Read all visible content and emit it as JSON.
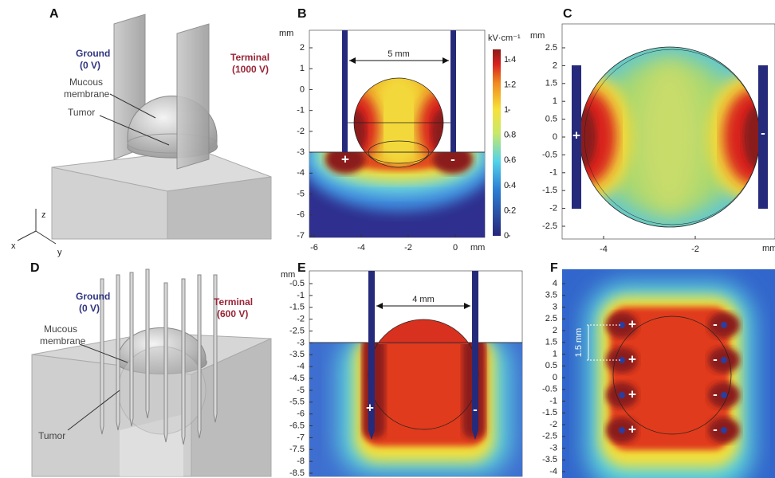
{
  "panel_a": {
    "letter": "A",
    "ground_label": "Ground",
    "ground_voltage": "(0 V)",
    "terminal_label": "Terminal",
    "terminal_voltage": "(1000 V)",
    "membrane_label": [
      "Mucous",
      "membrane"
    ],
    "tumor_label": "Tumor",
    "axes": [
      "z",
      "x",
      "y"
    ]
  },
  "panel_b": {
    "letter": "B",
    "y_unit": "mm",
    "x_unit": "mm",
    "yticks": [
      2,
      1,
      0,
      -1,
      -2,
      -3,
      -4,
      -5,
      -6,
      -7
    ],
    "xticks": [
      -6,
      -4,
      -2,
      0
    ],
    "gap_label": "5 mm",
    "plus": "+",
    "minus": "-",
    "colorbar": {
      "unit": "kV·cm⁻¹",
      "ticks": [
        1.4,
        1.2,
        1,
        0.8,
        0.6,
        0.4,
        0.2,
        0
      ]
    }
  },
  "panel_c": {
    "letter": "C",
    "y_unit": "mm",
    "x_unit": "mm",
    "yticks": [
      2.5,
      2,
      1.5,
      1,
      0.5,
      0,
      -0.5,
      -1,
      -1.5,
      -2,
      -2.5
    ],
    "xticks": [
      -4,
      -2
    ],
    "plus": "+",
    "minus": "-"
  },
  "panel_d": {
    "letter": "D",
    "ground_label": "Ground",
    "ground_voltage": "(0 V)",
    "terminal_label": "Terminal",
    "terminal_voltage": "(600 V)",
    "membrane_label": [
      "Mucous",
      "membrane"
    ],
    "tumor_label": "Tumor"
  },
  "panel_e": {
    "letter": "E",
    "y_unit": "mm",
    "yticks": [
      -0.5,
      -1,
      -1.5,
      -2,
      -2.5,
      -3,
      -3.5,
      -4,
      -4.5,
      -5,
      -5.5,
      -6,
      -6.5,
      -7,
      -7.5,
      -8,
      -8.5
    ],
    "gap_label": "4 mm",
    "plus": "+",
    "minus": "-"
  },
  "panel_f": {
    "letter": "F",
    "yticks": [
      4,
      3.5,
      3,
      2.5,
      2,
      1.5,
      1,
      0.5,
      0,
      -0.5,
      -1,
      -1.5,
      -2,
      -2.5,
      -3,
      -3.5,
      -4
    ],
    "spacing_label": "1.5 mm",
    "plus": "+",
    "minus": "-"
  }
}
